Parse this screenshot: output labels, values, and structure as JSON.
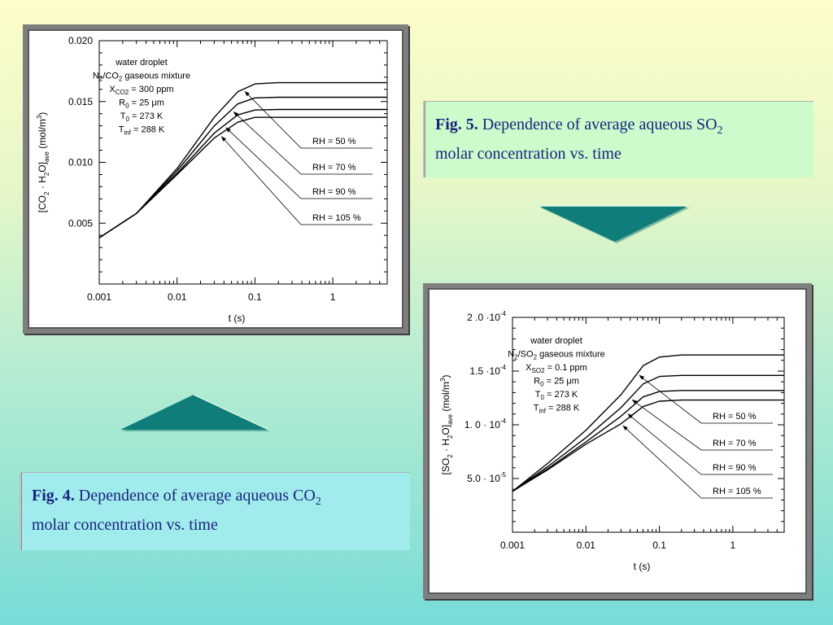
{
  "colors": {
    "accent": "#1a237e",
    "arrow": "#0f7d7a"
  },
  "captions": {
    "fig4": {
      "label": "Fig. 4.",
      "text": "Dependence of average aqueous CO",
      "sub": "2",
      "line2": "molar concentration vs. time"
    },
    "fig5": {
      "label": "Fig. 5.",
      "text": "Dependence of average aqueous SO",
      "sub": "2",
      "line2": "molar concentration vs. time"
    }
  },
  "arrows": {
    "right": "triangle-down-icon",
    "left": "triangle-up-icon"
  },
  "chart_data": [
    {
      "type": "line",
      "xscale": "log",
      "xlim": [
        0.001,
        5
      ],
      "ylim": [
        0,
        0.02
      ],
      "xticks": [
        "0.001",
        "0.01",
        "0.1",
        "1"
      ],
      "yticks": [
        "0.005",
        "0.010",
        "0.015",
        "0.020"
      ],
      "xlabel": "t (s)",
      "ylabel": {
        "main": "[CO",
        "s1": "2",
        "mid": " · H",
        "s2": "2",
        "mid2": "O]",
        "s3": "ave",
        "unit": "  (mol/m",
        "sup": "3",
        "end": ")"
      },
      "annotation": {
        "l1": "water droplet",
        "l2": {
          "a": "N",
          "s1": "2",
          "b": "/CO",
          "s2": "2",
          "c": " gaseous mixture"
        },
        "l3": {
          "a": "X",
          "s": "CO2",
          "b": " = 300 ppm"
        },
        "l4": {
          "a": "R",
          "s": "0",
          "b": " = 25 μm"
        },
        "l5": {
          "a": "T",
          "s": "0",
          "b": " = 273 K"
        },
        "l6": {
          "a": "T",
          "s": "inf",
          "b": " = 288 K"
        }
      },
      "series": [
        {
          "name": "RH = 50 %",
          "x": [
            0.001,
            0.003,
            0.01,
            0.03,
            0.06,
            0.1,
            0.2,
            5
          ],
          "y": [
            0.0038,
            0.0058,
            0.0095,
            0.0137,
            0.0158,
            0.01645,
            0.01655,
            0.01655
          ]
        },
        {
          "name": "RH = 70 %",
          "x": [
            0.001,
            0.003,
            0.01,
            0.03,
            0.06,
            0.1,
            0.2,
            5
          ],
          "y": [
            0.0038,
            0.0058,
            0.0093,
            0.013,
            0.0148,
            0.0153,
            0.01535,
            0.01535
          ]
        },
        {
          "name": "RH = 90 %",
          "x": [
            0.001,
            0.003,
            0.01,
            0.03,
            0.06,
            0.1,
            0.2,
            5
          ],
          "y": [
            0.0038,
            0.0058,
            0.0091,
            0.0124,
            0.0139,
            0.0143,
            0.01435,
            0.01435
          ]
        },
        {
          "name": "RH = 105 %",
          "x": [
            0.001,
            0.003,
            0.01,
            0.03,
            0.06,
            0.1,
            0.2,
            5
          ],
          "y": [
            0.0038,
            0.0058,
            0.009,
            0.012,
            0.0133,
            0.0137,
            0.0137,
            0.0137
          ]
        }
      ]
    },
    {
      "type": "line",
      "xscale": "log",
      "xlim": [
        0.001,
        5
      ],
      "ylim": [
        0,
        0.0002
      ],
      "xticks": [
        "0.001",
        "0.01",
        "0.1",
        "1"
      ],
      "yticks": [
        "5.0 · 10",
        "1. 0 · 10",
        "1.5 ·10",
        "2 .0 ·10"
      ],
      "ytick_exp": "-5,-4,-4,-4",
      "xlabel": "t (s)",
      "ylabel": {
        "main": "[SO",
        "s1": "2",
        "mid": " · H",
        "s2": "2",
        "mid2": "O]",
        "s3": "ave",
        "unit": "  (mol/m",
        "sup": "3",
        "end": ")"
      },
      "annotation": {
        "l1": "water droplet",
        "l2": {
          "a": "N",
          "s1": "2",
          "b": "/SO",
          "s2": "2",
          "c": " gaseous mixture"
        },
        "l3": {
          "a": "X",
          "s": "SO2",
          "b": " = 0.1 ppm"
        },
        "l4": {
          "a": "R",
          "s": "0",
          "b": " = 25 μm"
        },
        "l5": {
          "a": "T",
          "s": "0",
          "b": " = 273 K"
        },
        "l6": {
          "a": "T",
          "s": "inf",
          "b": " = 288 K"
        }
      },
      "series": [
        {
          "name": "RH = 50 %",
          "x": [
            0.001,
            0.003,
            0.01,
            0.03,
            0.06,
            0.1,
            0.2,
            5
          ],
          "y": [
            3.8e-05,
            6.4e-05,
            9.5e-05,
            0.000128,
            0.000155,
            0.000163,
            0.000165,
            0.000165
          ]
        },
        {
          "name": "RH = 70 %",
          "x": [
            0.001,
            0.003,
            0.01,
            0.03,
            0.06,
            0.1,
            0.2,
            5
          ],
          "y": [
            3.8e-05,
            6.1e-05,
            8.8e-05,
            0.000116,
            0.000138,
            0.000145,
            0.000146,
            0.000146
          ]
        },
        {
          "name": "RH = 90 %",
          "x": [
            0.001,
            0.003,
            0.01,
            0.03,
            0.06,
            0.1,
            0.2,
            5
          ],
          "y": [
            3.8e-05,
            5.9e-05,
            8.4e-05,
            0.000108,
            0.000126,
            0.000131,
            0.000132,
            0.000132
          ]
        },
        {
          "name": "RH = 105 %",
          "x": [
            0.001,
            0.003,
            0.01,
            0.03,
            0.06,
            0.1,
            0.2,
            5
          ],
          "y": [
            3.8e-05,
            5.8e-05,
            8.2e-05,
            0.000101,
            0.000117,
            0.000122,
            0.000123,
            0.000123
          ]
        }
      ]
    }
  ]
}
